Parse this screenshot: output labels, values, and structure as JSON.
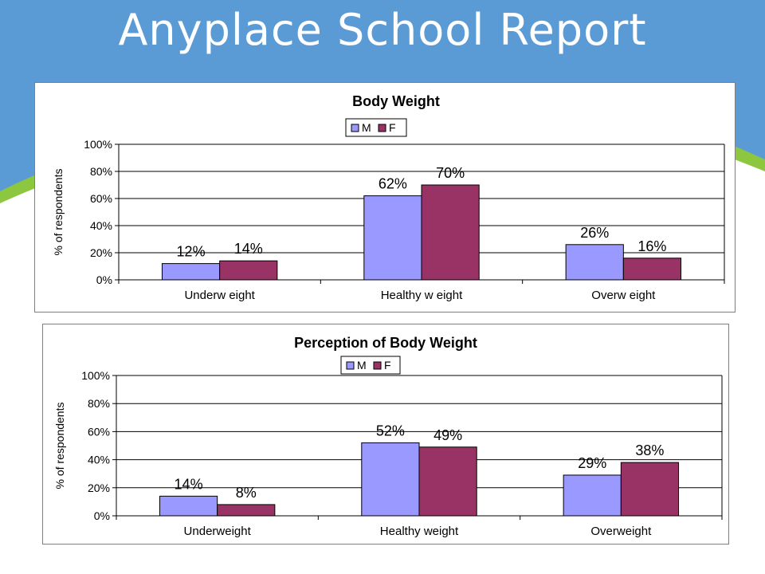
{
  "slide": {
    "title": "Anyplace School Report",
    "colors": {
      "background": "#5b9bd5",
      "accent_green": "#8dc63f"
    }
  },
  "chart_data": [
    {
      "type": "bar",
      "title": "Body Weight",
      "categories": [
        "Underw eight",
        "Healthy w eight",
        "Overw eight"
      ],
      "series": [
        {
          "name": "M",
          "color": "#9999ff",
          "values": [
            12,
            62,
            26
          ],
          "labels": [
            "12%",
            "62%",
            "26%"
          ]
        },
        {
          "name": "F",
          "color": "#993366",
          "values": [
            14,
            70,
            16
          ],
          "labels": [
            "14%",
            "70%",
            "16%"
          ]
        }
      ],
      "xlabel": "",
      "ylabel": "% of respondents",
      "ylim": [
        0,
        100
      ],
      "yticks": [
        "0%",
        "20%",
        "40%",
        "60%",
        "80%",
        "100%"
      ],
      "grid": true,
      "legend": "top-center"
    },
    {
      "type": "bar",
      "title": "Perception of Body Weight",
      "categories": [
        "Underweight",
        "Healthy weight",
        "Overweight"
      ],
      "series": [
        {
          "name": "M",
          "color": "#9999ff",
          "values": [
            14,
            52,
            29
          ],
          "labels": [
            "14%",
            "52%",
            "29%"
          ]
        },
        {
          "name": "F",
          "color": "#993366",
          "values": [
            8,
            49,
            38
          ],
          "labels": [
            "8%",
            "49%",
            "38%"
          ]
        }
      ],
      "xlabel": "",
      "ylabel": "% of respondents",
      "ylim": [
        0,
        100
      ],
      "yticks": [
        "0%",
        "20%",
        "40%",
        "60%",
        "80%",
        "100%"
      ],
      "grid": true,
      "legend": "top-center"
    }
  ]
}
